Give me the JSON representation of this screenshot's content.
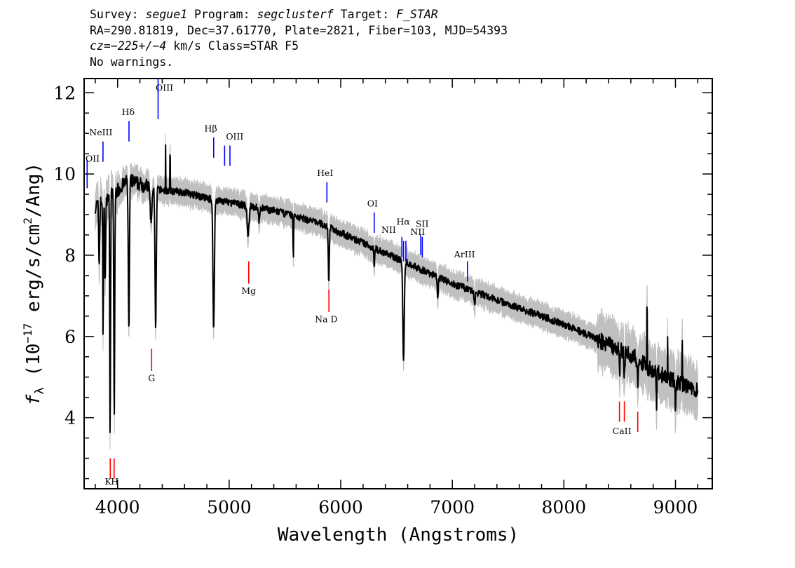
{
  "header": {
    "l1_a": "Survey: ",
    "l1_b": "segue1",
    "l1_c": " Program: ",
    "l1_d": "segclusterf",
    "l1_e": " Target: ",
    "l1_f": "F_STAR",
    "l2": "RA=290.81819, Dec=37.61770, Plate=2821, Fiber=103, MJD=54393",
    "l3_a": "cz=",
    "l3_b": "−225+/−4",
    "l3_c": " km/s Class=STAR F5",
    "l4": "No warnings."
  },
  "chart_data": {
    "type": "line",
    "xlabel": "Wavelength (Angstroms)",
    "ylabel_prefix": "f",
    "ylabel_sub": "λ",
    "ylabel_open": " (10",
    "ylabel_exp": "−17",
    "ylabel_rest": " erg/s/cm",
    "ylabel_exp2": "2",
    "ylabel_end": "/Ang)",
    "xlim": [
      3700,
      9330
    ],
    "ylim": [
      2.25,
      12.35
    ],
    "x_ticks": [
      4000,
      5000,
      6000,
      7000,
      8000,
      9000
    ],
    "x_tick_labels": [
      "4000",
      "5000",
      "6000",
      "7000",
      "8000",
      "9000"
    ],
    "y_ticks": [
      4,
      6,
      8,
      10,
      12
    ],
    "y_tick_labels": [
      "4",
      "6",
      "8",
      "10",
      "12"
    ],
    "grid": false,
    "series_color": "#000000",
    "error_color": "#c0c0c0",
    "continuum": [
      [
        3800,
        9.2
      ],
      [
        3900,
        9.4
      ],
      [
        4000,
        9.6
      ],
      [
        4100,
        9.85
      ],
      [
        4200,
        9.75
      ],
      [
        4400,
        9.6
      ],
      [
        4600,
        9.55
      ],
      [
        4800,
        9.4
      ],
      [
        5000,
        9.3
      ],
      [
        5200,
        9.2
      ],
      [
        5400,
        9.1
      ],
      [
        5600,
        8.95
      ],
      [
        5800,
        8.8
      ],
      [
        6000,
        8.55
      ],
      [
        6200,
        8.3
      ],
      [
        6400,
        8.05
      ],
      [
        6600,
        7.8
      ],
      [
        6800,
        7.55
      ],
      [
        7000,
        7.3
      ],
      [
        7200,
        7.1
      ],
      [
        7400,
        6.9
      ],
      [
        7600,
        6.7
      ],
      [
        7800,
        6.5
      ],
      [
        8000,
        6.3
      ],
      [
        8200,
        6.05
      ],
      [
        8400,
        5.8
      ],
      [
        8600,
        5.55
      ],
      [
        8800,
        5.15
      ],
      [
        9000,
        4.9
      ],
      [
        9200,
        4.65
      ]
    ],
    "absorption": [
      {
        "x": 3835,
        "depth": 1.5,
        "width": 6
      },
      {
        "x": 3870,
        "depth": 3.5,
        "width": 4
      },
      {
        "x": 3889,
        "depth": 2.0,
        "width": 6
      },
      {
        "x": 3933,
        "depth": 5.9,
        "width": 5
      },
      {
        "x": 3970,
        "depth": 5.5,
        "width": 6
      },
      {
        "x": 4101,
        "depth": 3.8,
        "width": 7
      },
      {
        "x": 4300,
        "depth": 0.9,
        "width": 10
      },
      {
        "x": 4341,
        "depth": 3.5,
        "width": 8
      },
      {
        "x": 4861,
        "depth": 3.2,
        "width": 9
      },
      {
        "x": 5170,
        "depth": 0.7,
        "width": 12
      },
      {
        "x": 5270,
        "depth": 0.35,
        "width": 8
      },
      {
        "x": 5575,
        "depth": 1.0,
        "width": 4
      },
      {
        "x": 5893,
        "depth": 1.4,
        "width": 6
      },
      {
        "x": 6300,
        "depth": 0.55,
        "width": 4
      },
      {
        "x": 6563,
        "depth": 2.5,
        "width": 9
      },
      {
        "x": 6870,
        "depth": 0.45,
        "width": 6
      },
      {
        "x": 7200,
        "depth": 0.3,
        "width": 8
      },
      {
        "x": 8500,
        "depth": 0.5,
        "width": 6
      },
      {
        "x": 8542,
        "depth": 0.6,
        "width": 6
      },
      {
        "x": 8662,
        "depth": 0.5,
        "width": 6
      },
      {
        "x": 8830,
        "depth": 0.9,
        "width": 4
      },
      {
        "x": 9000,
        "depth": 0.8,
        "width": 4
      }
    ],
    "emission_spikes": [
      {
        "x": 4430,
        "height": 1.1
      },
      {
        "x": 4470,
        "height": 0.8
      },
      {
        "x": 8745,
        "height": 1.3
      },
      {
        "x": 8930,
        "height": 1.0
      },
      {
        "x": 9060,
        "height": 0.9
      }
    ],
    "line_markers": [
      {
        "label": "OII",
        "x": 3727,
        "color": "#0000ff",
        "y0": 9.65,
        "y1": 10.35,
        "lx": 3727,
        "ly": 10.3
      },
      {
        "label": "NeIII",
        "x": 3869,
        "color": "#0000ff",
        "y0": 10.3,
        "y1": 10.8,
        "lx": 3850,
        "ly": 10.95
      },
      {
        "label": "Hδ",
        "x": 4102,
        "color": "#0000ff",
        "y0": 10.8,
        "y1": 11.3,
        "lx": 4095,
        "ly": 11.45
      },
      {
        "label": "OIII",
        "x": 4363,
        "color": "#0000ff",
        "y0": 11.35,
        "y1": 12.35,
        "lx": 4420,
        "ly": 12.05
      },
      {
        "label": "Hβ",
        "x": 4861,
        "color": "#0000ff",
        "y0": 10.4,
        "y1": 10.9,
        "lx": 4835,
        "ly": 11.05
      },
      {
        "label": "OIII",
        "x": 4959,
        "color": "#0000ff",
        "y0": 10.2,
        "y1": 10.7,
        "lx": 5050,
        "ly": 10.85
      },
      {
        "label": "OIII2",
        "x": 5007,
        "color": "#0000ff",
        "y0": 10.2,
        "y1": 10.7,
        "lx": null,
        "ly": null
      },
      {
        "label": "HeI",
        "x": 5876,
        "color": "#0000ff",
        "y0": 9.3,
        "y1": 9.8,
        "lx": 5860,
        "ly": 9.95
      },
      {
        "label": "OI",
        "x": 6300,
        "color": "#0000ff",
        "y0": 8.55,
        "y1": 9.05,
        "lx": 6285,
        "ly": 9.2
      },
      {
        "label": "NII",
        "x": 6548,
        "color": "#0000ff",
        "y0": 7.95,
        "y1": 8.45,
        "lx": 6430,
        "ly": 8.55
      },
      {
        "label": "Hα",
        "x": 6563,
        "color": "#0000ff",
        "y0": 7.85,
        "y1": 8.35,
        "lx": 6560,
        "ly": 8.75
      },
      {
        "label": "NII2",
        "x": 6584,
        "color": "#0000ff",
        "y0": 7.85,
        "y1": 8.35,
        "lx": null,
        "ly": null
      },
      {
        "label": "SII",
        "x": 6717,
        "color": "#0000ff",
        "y0": 8.0,
        "y1": 8.5,
        "lx": 6730,
        "ly": 8.7
      },
      {
        "label": "NII",
        "x": 6731,
        "color": "#0000ff",
        "y0": 7.95,
        "y1": 8.45,
        "lx": 6690,
        "ly": 8.5
      },
      {
        "label": "ArIII",
        "x": 7136,
        "color": "#0000ff",
        "y0": 7.35,
        "y1": 7.85,
        "lx": 7110,
        "ly": 7.95
      },
      {
        "label": "K",
        "x": 3934,
        "color": "#ff0000",
        "y0": 2.5,
        "y1": 3.0,
        "lx": 3915,
        "ly": 2.35
      },
      {
        "label": "H",
        "x": 3969,
        "color": "#ff0000",
        "y0": 2.5,
        "y1": 3.0,
        "lx": 3975,
        "ly": 2.35
      },
      {
        "label": "G",
        "x": 4305,
        "color": "#ff0000",
        "y0": 5.15,
        "y1": 5.7,
        "lx": 4305,
        "ly": 4.9
      },
      {
        "label": "Mg",
        "x": 5175,
        "color": "#ff0000",
        "y0": 7.3,
        "y1": 7.85,
        "lx": 5175,
        "ly": 7.05
      },
      {
        "label": "Na D",
        "x": 5894,
        "color": "#ff0000",
        "y0": 6.6,
        "y1": 7.15,
        "lx": 5870,
        "ly": 6.35
      },
      {
        "label": "CaII",
        "x": 8498,
        "color": "#ff0000",
        "y0": 3.9,
        "y1": 4.4,
        "lx": 8520,
        "ly": 3.6
      },
      {
        "label": "CaII2",
        "x": 8542,
        "color": "#ff0000",
        "y0": 3.9,
        "y1": 4.4,
        "lx": null,
        "ly": null
      },
      {
        "label": "CaII3",
        "x": 8662,
        "color": "#ff0000",
        "y0": 3.65,
        "y1": 4.15,
        "lx": null,
        "ly": null
      }
    ]
  }
}
